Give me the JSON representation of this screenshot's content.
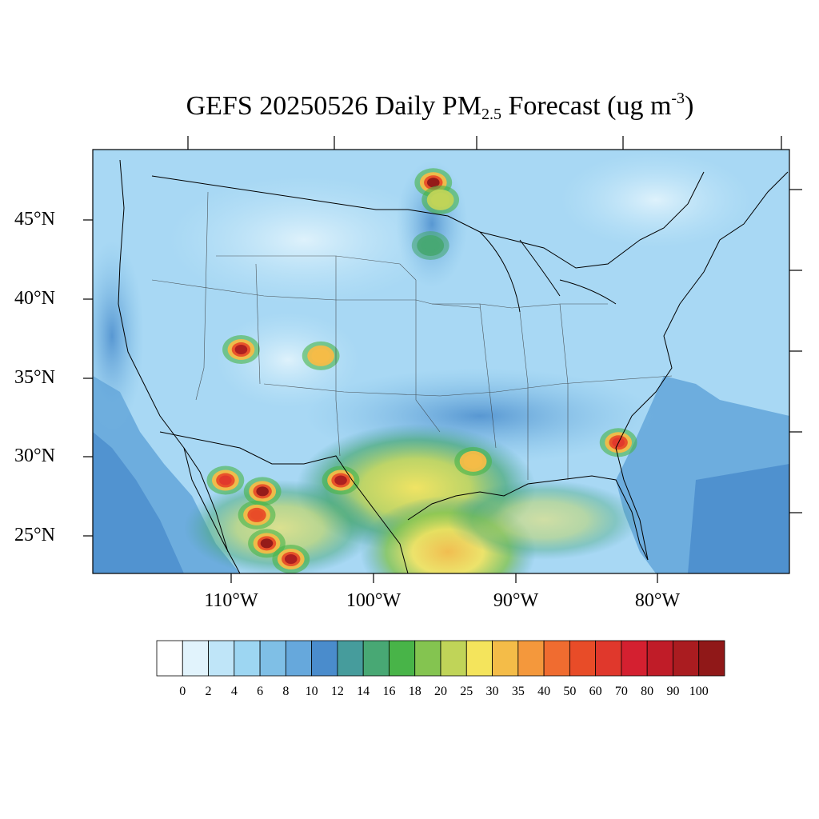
{
  "title": {
    "prefix": "GEFS 20250526 Daily PM",
    "subscript": "2.5",
    "middle": " Forecast (ug m",
    "superscript": "-3",
    "suffix": ")"
  },
  "map": {
    "region": "Contiguous United States",
    "lat_labels": [
      "45°N",
      "40°N",
      "35°N",
      "30°N",
      "25°N"
    ],
    "lon_labels": [
      "110°W",
      "100°W",
      "90°W",
      "80°W"
    ],
    "background_color": "#a8d8f4"
  },
  "colorbar": {
    "labels": [
      "0",
      "2",
      "4",
      "6",
      "8",
      "10",
      "12",
      "14",
      "16",
      "18",
      "20",
      "25",
      "30",
      "35",
      "40",
      "50",
      "60",
      "70",
      "80",
      "90",
      "100"
    ],
    "colors": [
      "#ffffff",
      "#e1f3fc",
      "#bfe5f8",
      "#9dd6f2",
      "#7fbfe6",
      "#66a8dc",
      "#4a8ccc",
      "#469c9c",
      "#48a874",
      "#48b448",
      "#84c450",
      "#c0d458",
      "#f4e45c",
      "#f4bc48",
      "#f4983c",
      "#f06c30",
      "#e84c28",
      "#e0382c",
      "#d42030",
      "#c01c28",
      "#aa1c20",
      "#901818"
    ]
  },
  "hotspots": [
    {
      "name": "northwest-minnesota",
      "lon": -95.8,
      "lat": 47.4,
      "level": 100
    },
    {
      "name": "north-minnesota-2",
      "lon": -95.3,
      "lat": 46.3,
      "level": 20
    },
    {
      "name": "central-minnesota",
      "lon": -96.0,
      "lat": 43.4,
      "level": 14
    },
    {
      "name": "southern-utah",
      "lon": -109.3,
      "lat": 36.8,
      "level": 90
    },
    {
      "name": "colorado-small",
      "lon": -103.7,
      "lat": 36.4,
      "level": 30
    },
    {
      "name": "chihuahua",
      "lon": -107.8,
      "lat": 27.8,
      "level": 100
    },
    {
      "name": "coahuila",
      "lon": -102.3,
      "lat": 28.5,
      "level": 90
    },
    {
      "name": "sonora",
      "lon": -110.4,
      "lat": 28.5,
      "level": 60
    },
    {
      "name": "durango-north",
      "lon": -107.5,
      "lat": 24.5,
      "level": 100
    },
    {
      "name": "durango-south",
      "lon": -105.8,
      "lat": 23.5,
      "level": 90
    },
    {
      "name": "sinaloa",
      "lon": -108.2,
      "lat": 26.3,
      "level": 50
    },
    {
      "name": "georgia-coast",
      "lon": -82.8,
      "lat": 30.9,
      "level": 60
    },
    {
      "name": "east-texas",
      "lon": -93.0,
      "lat": 29.7,
      "level": 30
    }
  ]
}
